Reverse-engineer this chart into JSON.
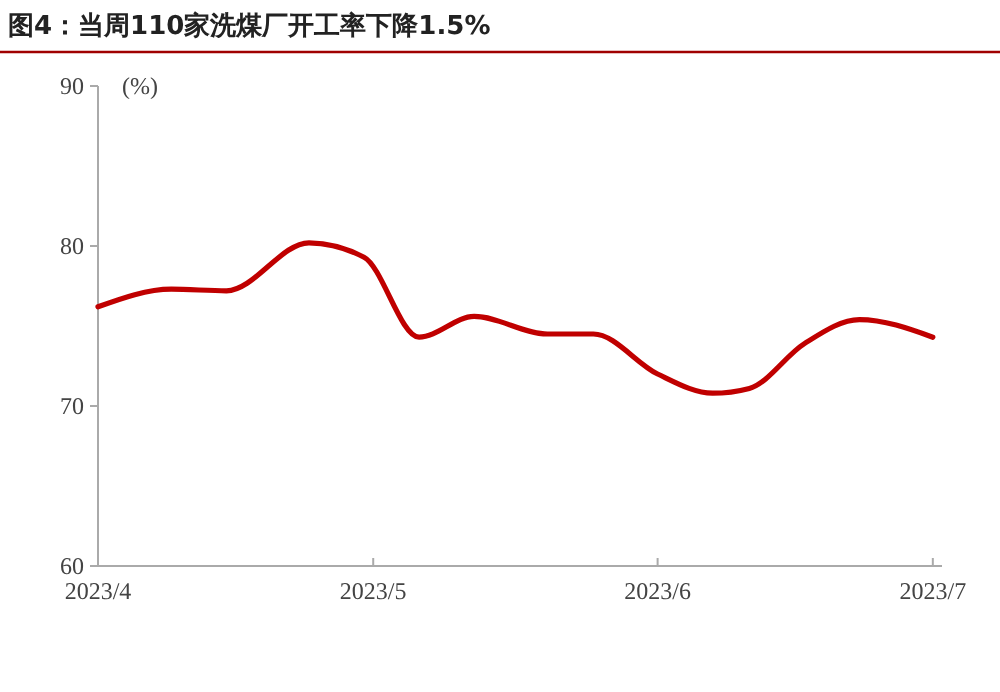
{
  "chart_data": {
    "type": "line",
    "title": "图4：当周110家洗煤厂开工率下降1.5%",
    "ylabel": "(%)",
    "x": [
      "2023-04-01",
      "2023-04-09",
      "2023-04-15",
      "2023-04-24",
      "2023-04-30",
      "2023-05-06",
      "2023-05-12",
      "2023-05-20",
      "2023-05-25",
      "2023-06-01",
      "2023-06-07",
      "2023-06-11",
      "2023-06-17",
      "2023-06-23",
      "2023-07-01"
    ],
    "series": [
      {
        "color": "#c00000",
        "values": [
          76.2,
          77.3,
          77.2,
          80.2,
          79.3,
          74.3,
          75.6,
          74.5,
          74.5,
          72.0,
          70.8,
          71.1,
          73.9,
          75.4,
          74.3
        ]
      }
    ],
    "xlim": [
      "2023-04-01",
      "2023-07-02"
    ],
    "xticks": [
      {
        "value": "2023-04-01",
        "label": "2023/4"
      },
      {
        "value": "2023-05-01",
        "label": "2023/5"
      },
      {
        "value": "2023-06-01",
        "label": "2023/6"
      },
      {
        "value": "2023-07-01",
        "label": "2023/7"
      }
    ],
    "ylim": [
      60,
      90
    ],
    "yticks": [
      60,
      70,
      80,
      90
    ],
    "grid": false,
    "marker": "none",
    "line_style": "solid"
  }
}
